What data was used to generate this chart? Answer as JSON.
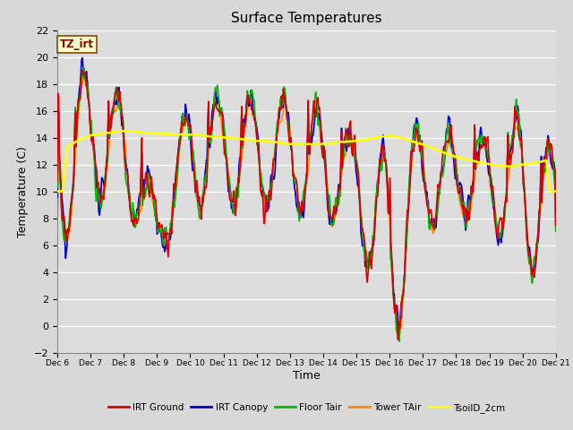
{
  "title": "Surface Temperatures",
  "ylabel": "Temperature (C)",
  "xlabel": "Time",
  "ylim": [
    -2,
    22
  ],
  "annotation_text": "TZ_irt",
  "annotation_fg": "#8B0000",
  "annotation_bg": "#ffffcc",
  "annotation_border": "#8B4500",
  "series": [
    {
      "name": "IRT Ground",
      "color": "#dd0000",
      "lw": 1.2,
      "zorder": 4
    },
    {
      "name": "IRT Canopy",
      "color": "#0000cc",
      "lw": 1.2,
      "zorder": 3
    },
    {
      "name": "Floor Tair",
      "color": "#00bb00",
      "lw": 1.2,
      "zorder": 3
    },
    {
      "name": "Tower TAir",
      "color": "#ff8800",
      "lw": 1.2,
      "zorder": 2
    },
    {
      "name": "TsoilD_2cm",
      "color": "#ffff00",
      "lw": 1.8,
      "zorder": 5
    }
  ],
  "fig_bg": "#d8d8d8",
  "plot_bg": "#dcdcdc",
  "grid_color": "#ffffff",
  "xtick_labels": [
    "Dec 6",
    "Dec 7",
    "Dec 8",
    "Dec 9",
    "Dec 10",
    "Dec 11",
    "Dec 12",
    "Dec 13",
    "Dec 14",
    "Dec 15",
    "Dec 16",
    "Dec 17",
    "Dec 18",
    "Dec 19",
    "Dec 20",
    "Dec 21"
  ],
  "ytick_values": [
    -2,
    0,
    2,
    4,
    6,
    8,
    10,
    12,
    14,
    16,
    18,
    20,
    22
  ]
}
